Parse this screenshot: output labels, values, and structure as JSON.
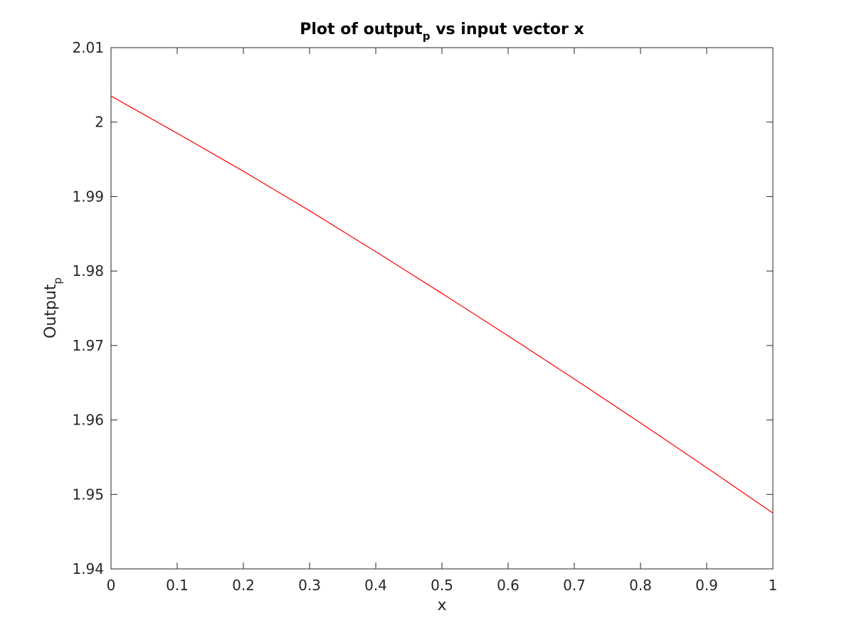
{
  "chart_data": {
    "type": "line",
    "title": "Plot of output",
    "title_sub": "p",
    "title_suffix": " vs input vector x",
    "xlabel": "x",
    "ylabel": "Output",
    "ylabel_sub": "p",
    "xlim": [
      0,
      1
    ],
    "ylim": [
      1.94,
      2.01
    ],
    "xticks": [
      0,
      0.1,
      0.2,
      0.3,
      0.4,
      0.5,
      0.6,
      0.7,
      0.8,
      0.9,
      1
    ],
    "xtick_labels": [
      "0",
      "0.1",
      "0.2",
      "0.3",
      "0.4",
      "0.5",
      "0.6",
      "0.7",
      "0.8",
      "0.9",
      "1"
    ],
    "yticks": [
      1.94,
      1.95,
      1.96,
      1.97,
      1.98,
      1.99,
      2.0,
      2.01
    ],
    "ytick_labels": [
      "1.94",
      "1.95",
      "1.96",
      "1.97",
      "1.98",
      "1.99",
      "2",
      "2.01"
    ],
    "grid": false,
    "series": [
      {
        "color": "#ff0000",
        "x": [
          0,
          0.1,
          0.2,
          0.3,
          0.4,
          0.5,
          0.6,
          0.7,
          0.8,
          0.9,
          1
        ],
        "y": [
          2.0035,
          1.9985,
          1.9934,
          1.9881,
          1.9826,
          1.977,
          1.9713,
          1.9655,
          1.9596,
          1.9536,
          1.9475
        ]
      }
    ]
  }
}
